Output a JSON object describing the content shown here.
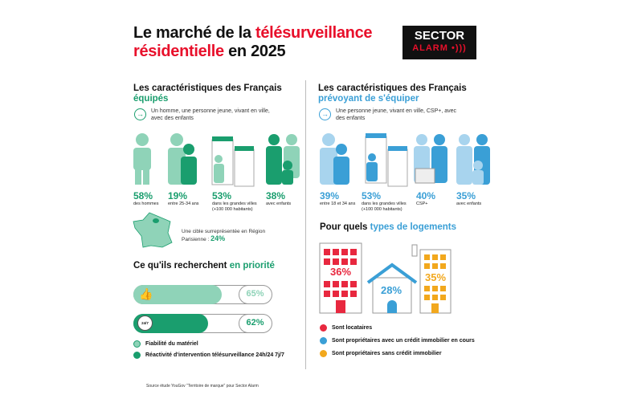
{
  "header": {
    "title_part1": "Le marché de la ",
    "title_highlight1": "télésurveillance",
    "title_highlight2": "résidentielle",
    "title_part2": " en 2025",
    "logo_line1": "SECTOR",
    "logo_line2": "ALARM"
  },
  "equipped": {
    "heading": "Les caractéristiques des Français ",
    "heading_highlight": "équipés",
    "intro": "Un homme, une personne jeune, vivant en ville, avec des enfants",
    "stats": [
      {
        "value": "58%",
        "label": "des hommes"
      },
      {
        "value": "19%",
        "label": "entre 25-34 ans"
      },
      {
        "value": "53%",
        "label": "dans les grandes villes (+100 000 habitants)"
      },
      {
        "value": "38%",
        "label": "avec enfants"
      }
    ],
    "region_text": "Une cible surreprésentée en Région Parisienne : ",
    "region_value": "24%"
  },
  "planning": {
    "heading": "Les caractéristiques des Français ",
    "heading_highlight": "prévoyant de s'équiper",
    "intro": "Une personne jeune, vivant en ville, CSP+, avec des enfants",
    "stats": [
      {
        "value": "39%",
        "label": "entre 18 et 34 ans"
      },
      {
        "value": "53%",
        "label": "dans les grandes villes (+100 000 habitants)"
      },
      {
        "value": "40%",
        "label": "CSP+"
      },
      {
        "value": "35%",
        "label": "avec enfants"
      }
    ]
  },
  "priority": {
    "heading": "Ce qu'ils recherchent ",
    "heading_highlight": "en priorité",
    "bars": [
      {
        "value": "65%",
        "percent": 65,
        "label": "Fiabilité du matériel",
        "color": "#8fd3b8",
        "icon": "thumbs-up-icon"
      },
      {
        "value": "62%",
        "percent": 62,
        "label": "Réactivité d'intervention télésurveillance 24h/24 7j/7",
        "color": "#1a9e6e",
        "icon": "clock-24-7-icon",
        "icon_text": "24/7"
      }
    ]
  },
  "housing": {
    "heading": "Pour quels ",
    "heading_highlight": "types de logements",
    "items": [
      {
        "value": "36%",
        "label": "Sont locataires",
        "color": "#e8283f"
      },
      {
        "value": "28%",
        "label": "Sont propriétaires avec un crédit immobilier en cours",
        "color": "#3a9fd6"
      },
      {
        "value": "35%",
        "label": "Sont propriétaires sans crédit immobilier",
        "color": "#f2a81d"
      }
    ]
  },
  "source": "Source étude YouGov \"Territoire de marque\" pour Sector Alarm",
  "colors": {
    "red": "#e8102b",
    "green": "#1a9e6e",
    "light_green": "#8fd3b8",
    "blue": "#3a9fd6",
    "light_blue": "#a8d4ee",
    "orange": "#f2a81d"
  }
}
